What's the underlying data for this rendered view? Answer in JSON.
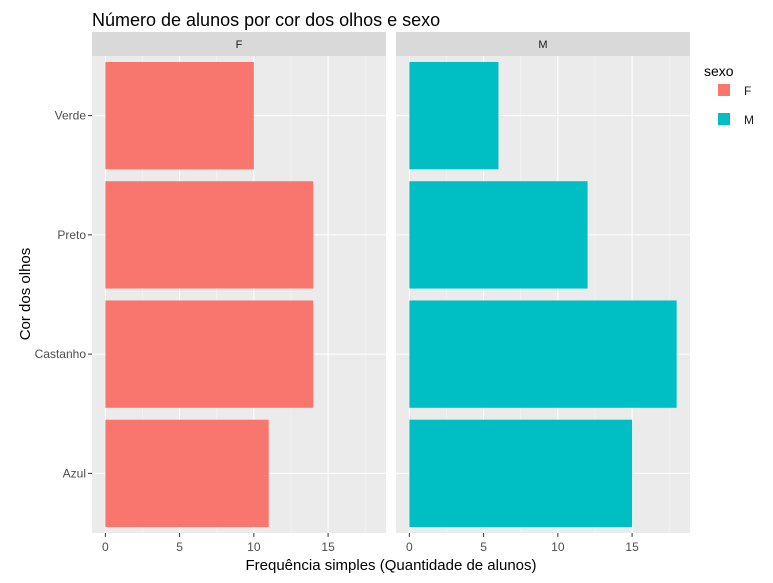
{
  "chart_data": {
    "type": "bar",
    "orientation": "horizontal",
    "title": "Número de alunos por cor dos olhos e sexo",
    "xlabel": "Frequência simples (Quantidade de alunos)",
    "ylabel": "Cor dos olhos",
    "categories": [
      "Azul",
      "Castanho",
      "Preto",
      "Verde"
    ],
    "facets": [
      {
        "label": "F",
        "values": [
          11,
          14,
          14,
          10
        ]
      },
      {
        "label": "M",
        "values": [
          15,
          18,
          12,
          6
        ]
      }
    ],
    "xlim": [
      -0.9,
      18.9
    ],
    "xticks": [
      0,
      5,
      10,
      15
    ],
    "grid": true,
    "legend": {
      "title": "sexo",
      "position": "right",
      "entries": [
        {
          "label": "F",
          "color": "#F8766D"
        },
        {
          "label": "M",
          "color": "#00BFC4"
        }
      ]
    }
  }
}
